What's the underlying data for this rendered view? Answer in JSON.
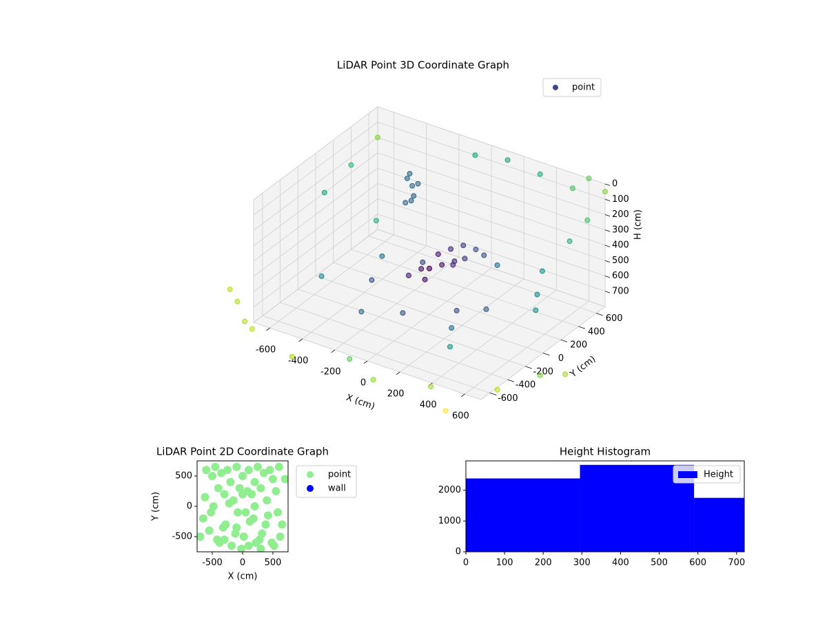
{
  "chart_data": [
    {
      "type": "scatter3d",
      "title": "LiDAR Point 3D Coordinate Graph",
      "xlabel": "X (cm)",
      "ylabel": "Y (cm)",
      "zlabel": "H (cm)",
      "xlim": [
        -700,
        700
      ],
      "ylim": [
        -700,
        700
      ],
      "zlim": [
        800,
        0
      ],
      "xticks": [
        -600,
        -400,
        -200,
        0,
        200,
        400,
        600
      ],
      "yticks": [
        -600,
        -400,
        -200,
        0,
        200,
        400,
        600
      ],
      "zticks": [
        0,
        100,
        200,
        300,
        400,
        500,
        600,
        700
      ],
      "grid": true,
      "colormap": "viridis",
      "legend": "upper right",
      "series": [
        {
          "name": "point",
          "color": "#414487",
          "x": [
            -300,
            -280,
            -260,
            -300,
            -250,
            -270,
            -290,
            0,
            50,
            100,
            150,
            0,
            50,
            100,
            -50,
            0,
            80,
            120,
            200,
            -100,
            -500,
            -400,
            300,
            500,
            -200,
            400,
            600,
            -600,
            200,
            -300,
            350,
            0,
            -150,
            450,
            250,
            600,
            700,
            500,
            300,
            100,
            -100,
            700,
            700,
            -700,
            -700,
            -700,
            -800,
            -700,
            -600,
            0,
            200,
            500,
            800,
            900,
            -900,
            -300,
            700,
            1000
          ],
          "y": [
            300,
            320,
            300,
            280,
            330,
            290,
            310,
            100,
            150,
            200,
            250,
            0,
            50,
            100,
            0,
            -50,
            120,
            180,
            250,
            -50,
            -300,
            200,
            -300,
            300,
            -400,
            -500,
            100,
            500,
            400,
            -100,
            0,
            -300,
            200,
            450,
            -150,
            700,
            700,
            700,
            700,
            700,
            700,
            500,
            300,
            700,
            400,
            100,
            -700,
            -800,
            -900,
            -900,
            -1000,
            -900,
            -700,
            -400,
            -600,
            -1000,
            -1100,
            -300
          ],
          "z": [
            150,
            200,
            250,
            300,
            180,
            280,
            120,
            450,
            420,
            400,
            430,
            500,
            480,
            460,
            520,
            550,
            500,
            470,
            450,
            560,
            600,
            650,
            650,
            620,
            680,
            650,
            600,
            620,
            580,
            640,
            640,
            660,
            600,
            550,
            620,
            0,
            50,
            100,
            80,
            60,
            100,
            150,
            200,
            200,
            250,
            300,
            700,
            750,
            720,
            700,
            720,
            700,
            700,
            700,
            700,
            750,
            700,
            700
          ]
        }
      ]
    },
    {
      "type": "scatter",
      "title": "LiDAR Point 2D Coordinate Graph",
      "xlabel": "X (cm)",
      "ylabel": "Y (cm)",
      "xlim": [
        -750,
        750
      ],
      "ylim": [
        -750,
        750
      ],
      "xticks": [
        -500,
        0,
        500
      ],
      "yticks": [
        -500,
        0,
        500
      ],
      "legend": "outside upper right",
      "series": [
        {
          "name": "point",
          "color": "#90ee90",
          "x": [
            -600,
            -500,
            -450,
            -400,
            -350,
            -300,
            -250,
            -200,
            -150,
            -100,
            -50,
            0,
            50,
            100,
            150,
            200,
            250,
            300,
            350,
            400,
            450,
            500,
            550,
            600,
            650,
            -650,
            -550,
            -480,
            -380,
            -280,
            -180,
            -80,
            20,
            120,
            220,
            320,
            420,
            520,
            620,
            -620,
            -520,
            -420,
            -320,
            -220,
            -120,
            -20,
            80,
            180,
            280,
            380,
            480,
            580,
            -700,
            700,
            -100,
            100,
            0,
            300,
            -300,
            200
          ],
          "y": [
            600,
            500,
            650,
            300,
            550,
            200,
            600,
            400,
            100,
            650,
            300,
            500,
            -100,
            600,
            200,
            400,
            650,
            300,
            550,
            100,
            600,
            450,
            250,
            650,
            -300,
            -200,
            -400,
            0,
            -600,
            -300,
            -650,
            -100,
            -500,
            -250,
            -600,
            -450,
            -150,
            -650,
            -500,
            150,
            -100,
            -550,
            -350,
            50,
            -450,
            -700,
            250,
            -200,
            -550,
            -300,
            -600,
            -100,
            -500,
            450,
            -350,
            -650,
            200,
            -700,
            -550,
            0
          ]
        },
        {
          "name": "wall",
          "color": "#0000ff",
          "x": [],
          "y": []
        }
      ]
    },
    {
      "type": "histogram",
      "title": "Height Histogram",
      "legend": "upper right",
      "bins": [
        0,
        295,
        590,
        720
      ],
      "counts": [
        2380,
        2820,
        1750
      ],
      "series_name": "Height",
      "color": "#0000ff",
      "xlim": [
        0,
        720
      ],
      "ylim": [
        0,
        2950
      ],
      "xticks": [
        0,
        100,
        200,
        300,
        400,
        500,
        600,
        700
      ],
      "yticks": [
        0,
        1000,
        2000
      ]
    }
  ]
}
